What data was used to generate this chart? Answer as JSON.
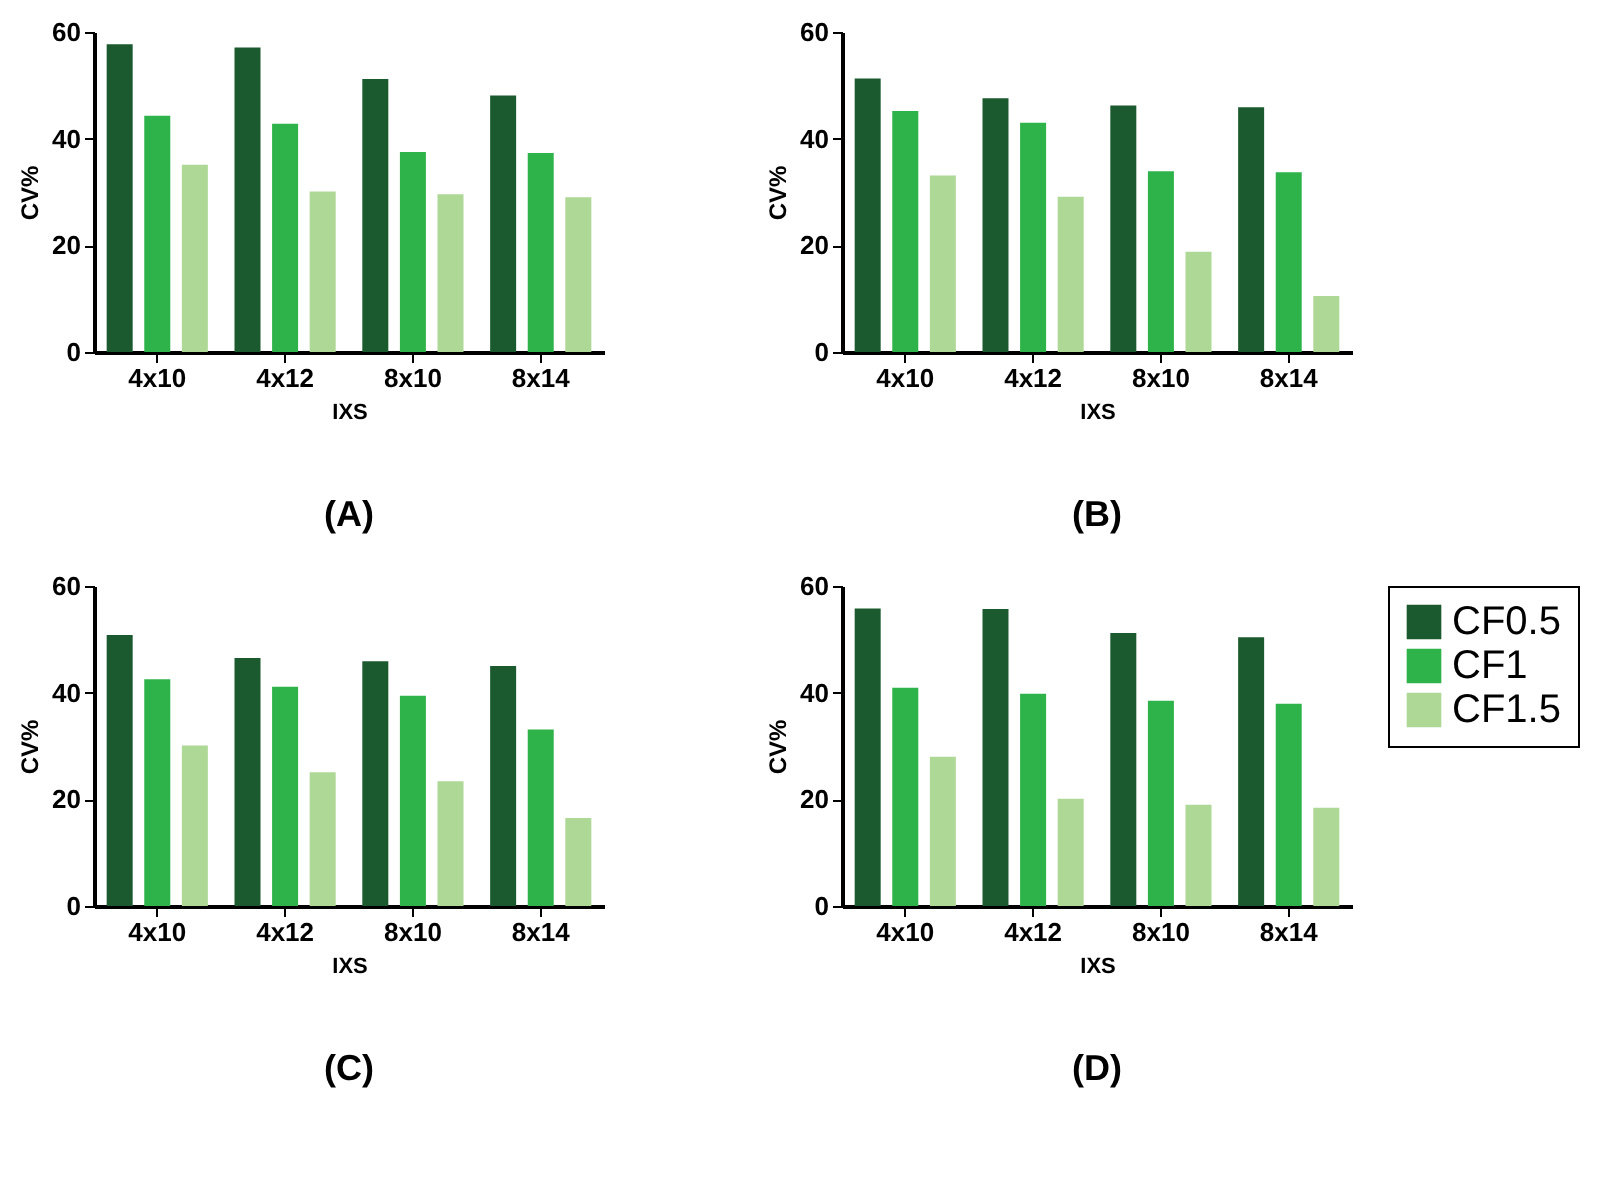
{
  "chart_data": [
    {
      "type": "bar",
      "title": "(A)",
      "xlabel": "IXS",
      "ylabel": "CV%",
      "categories": [
        "4x10",
        "4x12",
        "8x10",
        "8x14"
      ],
      "ylim": [
        0,
        60
      ],
      "yticks": [
        0,
        20,
        40,
        60
      ],
      "grid": false,
      "legend": false,
      "series": [
        {
          "color": "#1b5a2e",
          "values": [
            57.7,
            57.1,
            51.2,
            48.1
          ]
        },
        {
          "color": "#2db34a",
          "values": [
            44.3,
            42.8,
            37.5,
            37.3
          ]
        },
        {
          "color": "#aed896",
          "values": [
            35.1,
            30.1,
            29.6,
            29.0
          ]
        }
      ]
    },
    {
      "type": "bar",
      "title": "(B)",
      "xlabel": "IXS",
      "ylabel": "CV%",
      "categories": [
        "4x10",
        "4x12",
        "8x10",
        "8x14"
      ],
      "ylim": [
        0,
        60
      ],
      "yticks": [
        0,
        20,
        40,
        60
      ],
      "grid": false,
      "legend": false,
      "series": [
        {
          "color": "#1b5a2e",
          "values": [
            51.3,
            47.6,
            46.2,
            45.9
          ]
        },
        {
          "color": "#2db34a",
          "values": [
            45.2,
            43.0,
            33.9,
            33.7
          ]
        },
        {
          "color": "#aed896",
          "values": [
            33.1,
            29.1,
            18.8,
            10.5
          ]
        }
      ]
    },
    {
      "type": "bar",
      "title": "(C)",
      "xlabel": "IXS",
      "ylabel": "CV%",
      "categories": [
        "4x10",
        "4x12",
        "8x10",
        "8x14"
      ],
      "ylim": [
        0,
        60
      ],
      "yticks": [
        0,
        20,
        40,
        60
      ],
      "grid": false,
      "legend": false,
      "series": [
        {
          "color": "#1b5a2e",
          "values": [
            50.8,
            46.5,
            45.9,
            45.0
          ]
        },
        {
          "color": "#2db34a",
          "values": [
            42.5,
            41.1,
            39.4,
            33.1
          ]
        },
        {
          "color": "#aed896",
          "values": [
            30.1,
            25.1,
            23.4,
            16.5
          ]
        }
      ]
    },
    {
      "type": "bar",
      "title": "(D)",
      "xlabel": "IXS",
      "ylabel": "CV%",
      "categories": [
        "4x10",
        "4x12",
        "8x10",
        "8x14"
      ],
      "ylim": [
        0,
        60
      ],
      "yticks": [
        0,
        20,
        40,
        60
      ],
      "grid": false,
      "legend": "top right",
      "series": [
        {
          "name": "CF0.5",
          "color": "#1b5a2e",
          "values": [
            55.8,
            55.7,
            51.2,
            50.4
          ]
        },
        {
          "name": "CF1",
          "color": "#2db34a",
          "values": [
            40.9,
            39.8,
            38.5,
            37.9
          ]
        },
        {
          "name": "CF1.5",
          "color": "#aed896",
          "values": [
            28.0,
            20.1,
            19.0,
            18.4
          ]
        }
      ]
    }
  ]
}
